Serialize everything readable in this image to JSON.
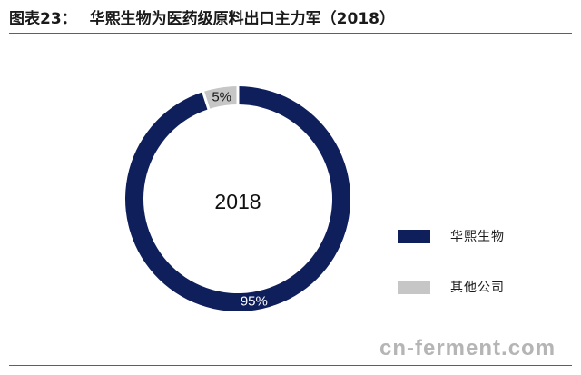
{
  "header": {
    "figure_label": "图表23：",
    "title": "华熙生物为医药级原料出口主力军（2018）"
  },
  "watermark": "cn-ferment.com",
  "colors": {
    "primary": "#0f1f5c",
    "secondary": "#c6c6c6",
    "rule": "#c0392b"
  },
  "chart_data": {
    "type": "pie",
    "subtype": "donut",
    "center_label": "2018",
    "categories": [
      "华熙生物",
      "其他公司"
    ],
    "values": [
      95,
      5
    ],
    "data_labels": [
      "95%",
      "5%"
    ],
    "colors": [
      "#0f1f5c",
      "#c6c6c6"
    ],
    "legend": {
      "position": "right",
      "items": [
        {
          "label": "华熙生物",
          "color": "#0f1f5c"
        },
        {
          "label": "其他公司",
          "color": "#c6c6c6"
        }
      ]
    }
  }
}
